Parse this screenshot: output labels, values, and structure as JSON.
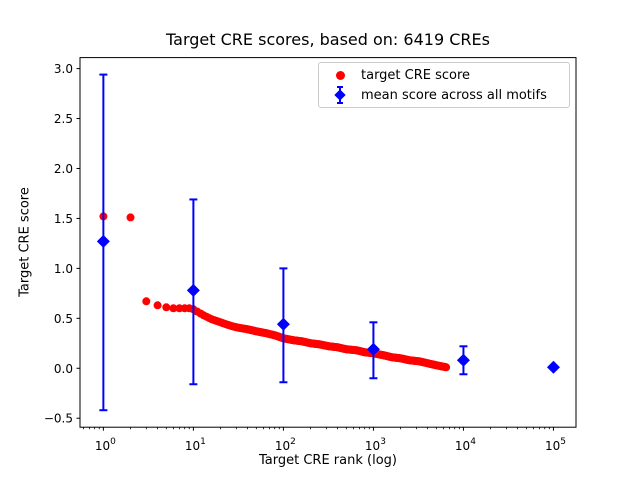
{
  "title": "Target CRE scores, based on: 6419 CREs",
  "chart_data": {
    "type": "scatter",
    "title": "Target CRE scores, based on: 6419 CREs",
    "xlabel": "Target CRE rank (log)",
    "ylabel": "Target CRE score",
    "x_scale": "log",
    "xlim": [
      0.55,
      178000
    ],
    "ylim": [
      -0.59,
      3.11
    ],
    "grid": false,
    "x_ticks": [
      {
        "value": 1,
        "base": "10",
        "exp": "0"
      },
      {
        "value": 10,
        "base": "10",
        "exp": "1"
      },
      {
        "value": 100,
        "base": "10",
        "exp": "2"
      },
      {
        "value": 1000,
        "base": "10",
        "exp": "3"
      },
      {
        "value": 10000,
        "base": "10",
        "exp": "4"
      },
      {
        "value": 100000,
        "base": "10",
        "exp": "5"
      }
    ],
    "y_ticks": [
      {
        "value": -0.5,
        "label": "−0.5"
      },
      {
        "value": 0.0,
        "label": "0.0"
      },
      {
        "value": 0.5,
        "label": "0.5"
      },
      {
        "value": 1.0,
        "label": "1.0"
      },
      {
        "value": 1.5,
        "label": "1.5"
      },
      {
        "value": 2.0,
        "label": "2.0"
      },
      {
        "value": 2.5,
        "label": "2.5"
      },
      {
        "value": 3.0,
        "label": "3.0"
      }
    ],
    "series": [
      {
        "name": "target CRE score",
        "marker": "circle",
        "color": "#ff0000",
        "note": "6419 points from rank 1 to 6419; anchor points sampled from the dense curve",
        "points": [
          [
            1,
            1.52
          ],
          [
            2,
            1.51
          ],
          [
            3,
            0.67
          ],
          [
            4,
            0.63
          ],
          [
            5,
            0.61
          ],
          [
            6,
            0.6
          ],
          [
            7,
            0.6
          ],
          [
            8,
            0.6
          ],
          [
            9,
            0.6
          ],
          [
            10,
            0.59
          ],
          [
            13,
            0.53
          ],
          [
            16,
            0.49
          ],
          [
            20,
            0.46
          ],
          [
            25,
            0.43
          ],
          [
            30,
            0.41
          ],
          [
            40,
            0.39
          ],
          [
            50,
            0.37
          ],
          [
            65,
            0.35
          ],
          [
            80,
            0.33
          ],
          [
            100,
            0.3
          ],
          [
            130,
            0.28
          ],
          [
            160,
            0.27
          ],
          [
            200,
            0.25
          ],
          [
            250,
            0.24
          ],
          [
            320,
            0.22
          ],
          [
            400,
            0.21
          ],
          [
            500,
            0.19
          ],
          [
            650,
            0.18
          ],
          [
            800,
            0.16
          ],
          [
            1000,
            0.15
          ],
          [
            1300,
            0.13
          ],
          [
            1600,
            0.11
          ],
          [
            2000,
            0.1
          ],
          [
            2500,
            0.08
          ],
          [
            3200,
            0.07
          ],
          [
            4000,
            0.05
          ],
          [
            5000,
            0.03
          ],
          [
            6419,
            0.01
          ]
        ],
        "n_points": 6419
      },
      {
        "name": "mean score across all motifs",
        "marker": "diamond",
        "color": "#0000ff",
        "points": [
          {
            "x": 1,
            "y": 1.27,
            "err_low": -0.42,
            "err_high": 2.94
          },
          {
            "x": 10,
            "y": 0.78,
            "err_low": -0.16,
            "err_high": 1.69
          },
          {
            "x": 100,
            "y": 0.44,
            "err_low": -0.14,
            "err_high": 1.0
          },
          {
            "x": 1000,
            "y": 0.19,
            "err_low": -0.1,
            "err_high": 0.46
          },
          {
            "x": 10000,
            "y": 0.08,
            "err_low": -0.06,
            "err_high": 0.22
          },
          {
            "x": 100000,
            "y": 0.01,
            "err_low": 0.01,
            "err_high": 0.01
          }
        ]
      }
    ],
    "legend": {
      "position": "upper right",
      "entries": [
        {
          "label": "target CRE score",
          "marker": "circle",
          "color": "#ff0000"
        },
        {
          "label": "mean score across all motifs",
          "marker": "diamond-errorbar",
          "color": "#0000ff"
        }
      ]
    },
    "colors": {
      "frame": "#000000",
      "legend_border": "#cccccc",
      "background": "#ffffff"
    }
  }
}
